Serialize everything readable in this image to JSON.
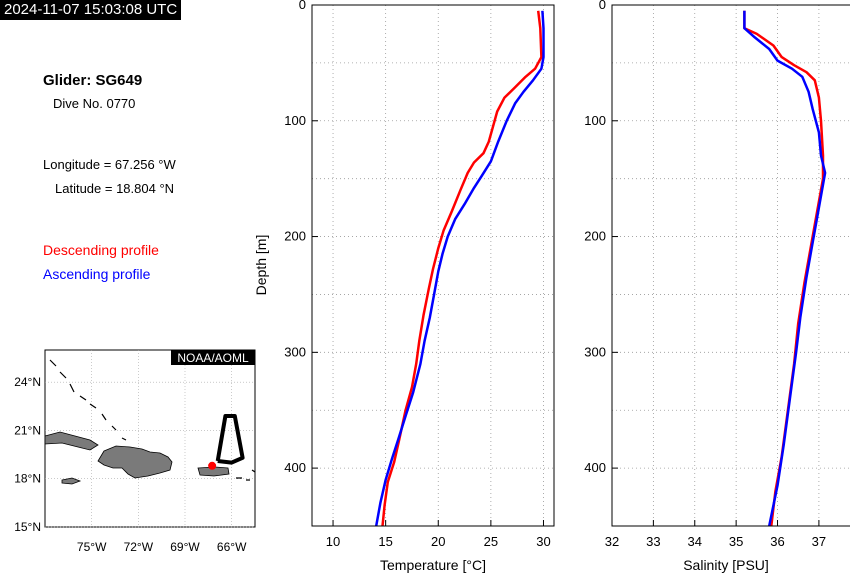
{
  "header": {
    "timestamp": "2024-11-07 15:03:08 UTC",
    "glider": "Glider: SG649",
    "dive": "Dive No. 0770",
    "longitude": "Longitude = 67.256 °W",
    "latitude": "Latitude = 18.804 °N",
    "legend_descending": "Descending profile",
    "legend_ascending": "Ascending profile"
  },
  "colors": {
    "descending": "#ff0000",
    "ascending": "#0000ff"
  },
  "map": {
    "badge": "NOAA/AOML",
    "lon_ticks": [
      "75°W",
      "72°W",
      "69°W",
      "66°W"
    ],
    "lat_ticks": [
      "24°N",
      "21°N",
      "18°N",
      "15°N"
    ],
    "lon_range": [
      -78,
      -64.5
    ],
    "lat_range": [
      15,
      26
    ],
    "track": [
      [
        -66.9,
        19.1
      ],
      [
        -66.4,
        21.9
      ],
      [
        -65.8,
        21.9
      ],
      [
        -65.3,
        19.3
      ],
      [
        -66.0,
        19.0
      ],
      [
        -66.9,
        19.1
      ]
    ],
    "glider_position": [
      -67.256,
      18.804
    ]
  },
  "chart_data": [
    {
      "type": "line",
      "xlabel": "Temperature [°C]",
      "ylabel": "Depth [m]",
      "xlim": [
        8,
        31
      ],
      "ylim": [
        0,
        450
      ],
      "x_ticks": [
        "10",
        "15",
        "20",
        "25",
        "30"
      ],
      "y_ticks": [
        "0",
        "100",
        "200",
        "300",
        "400"
      ],
      "y_inverted": true,
      "grid": true,
      "series": [
        {
          "name": "Descending profile",
          "color": "#ff0000",
          "points": [
            [
              29.5,
              5
            ],
            [
              29.7,
              20
            ],
            [
              29.8,
              45
            ],
            [
              29.2,
              55
            ],
            [
              28.3,
              62
            ],
            [
              27.2,
              72
            ],
            [
              26.3,
              80
            ],
            [
              25.6,
              92
            ],
            [
              25.2,
              105
            ],
            [
              24.8,
              118
            ],
            [
              24.3,
              128
            ],
            [
              23.4,
              136
            ],
            [
              22.8,
              145
            ],
            [
              22.1,
              160
            ],
            [
              21.3,
              178
            ],
            [
              20.5,
              195
            ],
            [
              20.0,
              210
            ],
            [
              19.5,
              228
            ],
            [
              19.1,
              245
            ],
            [
              18.6,
              268
            ],
            [
              18.2,
              290
            ],
            [
              17.9,
              310
            ],
            [
              17.5,
              330
            ],
            [
              16.9,
              350
            ],
            [
              16.3,
              375
            ],
            [
              15.8,
              395
            ],
            [
              15.2,
              412
            ],
            [
              14.9,
              432
            ],
            [
              14.7,
              450
            ]
          ]
        },
        {
          "name": "Ascending profile",
          "color": "#0000ff",
          "points": [
            [
              29.9,
              5
            ],
            [
              30.0,
              20
            ],
            [
              30.0,
              45
            ],
            [
              29.8,
              55
            ],
            [
              29.0,
              65
            ],
            [
              28.1,
              75
            ],
            [
              27.3,
              85
            ],
            [
              26.5,
              100
            ],
            [
              25.7,
              118
            ],
            [
              25.0,
              135
            ],
            [
              24.1,
              148
            ],
            [
              23.4,
              158
            ],
            [
              22.5,
              172
            ],
            [
              21.6,
              185
            ],
            [
              20.9,
              200
            ],
            [
              20.4,
              215
            ],
            [
              20.0,
              230
            ],
            [
              19.6,
              250
            ],
            [
              19.2,
              270
            ],
            [
              18.7,
              290
            ],
            [
              18.3,
              310
            ],
            [
              17.6,
              335
            ],
            [
              16.9,
              355
            ],
            [
              16.2,
              375
            ],
            [
              15.6,
              392
            ],
            [
              15.0,
              410
            ],
            [
              14.5,
              430
            ],
            [
              14.1,
              450
            ]
          ]
        }
      ]
    },
    {
      "type": "line",
      "xlabel": "Salinity [PSU]",
      "ylabel": "",
      "xlim": [
        32,
        37.8
      ],
      "ylim": [
        0,
        450
      ],
      "x_ticks": [
        "32",
        "33",
        "34",
        "35",
        "36",
        "37"
      ],
      "y_ticks": [
        "0",
        "100",
        "200",
        "300",
        "400"
      ],
      "y_inverted": true,
      "grid": true,
      "series": [
        {
          "name": "Descending profile",
          "color": "#ff0000",
          "points": [
            [
              35.2,
              5
            ],
            [
              35.2,
              20
            ],
            [
              35.5,
              25
            ],
            [
              35.9,
              35
            ],
            [
              36.1,
              45
            ],
            [
              36.4,
              52
            ],
            [
              36.7,
              58
            ],
            [
              36.9,
              65
            ],
            [
              37.0,
              80
            ],
            [
              37.05,
              100
            ],
            [
              37.1,
              130
            ],
            [
              37.1,
              150
            ],
            [
              36.95,
              180
            ],
            [
              36.8,
              210
            ],
            [
              36.65,
              240
            ],
            [
              36.5,
              275
            ],
            [
              36.4,
              310
            ],
            [
              36.25,
              350
            ],
            [
              36.1,
              390
            ],
            [
              35.95,
              420
            ],
            [
              35.85,
              450
            ]
          ]
        },
        {
          "name": "Ascending profile",
          "color": "#0000ff",
          "points": [
            [
              35.2,
              5
            ],
            [
              35.2,
              20
            ],
            [
              35.45,
              28
            ],
            [
              35.8,
              38
            ],
            [
              36.0,
              48
            ],
            [
              36.35,
              55
            ],
            [
              36.6,
              62
            ],
            [
              36.75,
              75
            ],
            [
              36.85,
              90
            ],
            [
              37.0,
              110
            ],
            [
              37.05,
              130
            ],
            [
              37.15,
              145
            ],
            [
              37.0,
              175
            ],
            [
              36.85,
              205
            ],
            [
              36.7,
              235
            ],
            [
              36.55,
              270
            ],
            [
              36.45,
              300
            ],
            [
              36.3,
              340
            ],
            [
              36.15,
              380
            ],
            [
              36.0,
              415
            ],
            [
              35.8,
              450
            ]
          ]
        }
      ]
    }
  ]
}
